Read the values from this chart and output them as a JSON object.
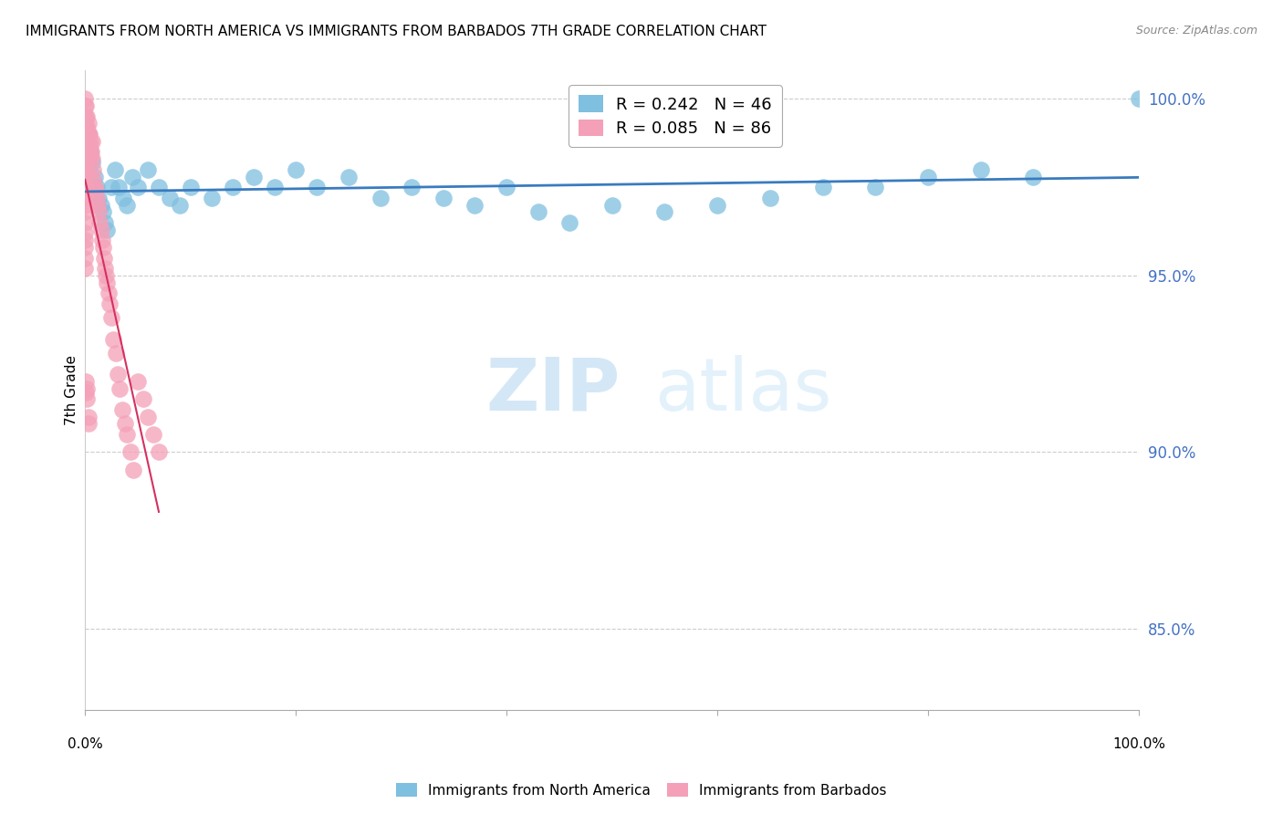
{
  "title": "IMMIGRANTS FROM NORTH AMERICA VS IMMIGRANTS FROM BARBADOS 7TH GRADE CORRELATION CHART",
  "source": "Source: ZipAtlas.com",
  "ylabel": "7th Grade",
  "ylabel_right_ticks": [
    "100.0%",
    "95.0%",
    "90.0%",
    "85.0%"
  ],
  "ylabel_right_vals": [
    1.0,
    0.95,
    0.9,
    0.85
  ],
  "legend_blue_label": "Immigrants from North America",
  "legend_pink_label": "Immigrants from Barbados",
  "legend_blue_r": "R = 0.242",
  "legend_blue_n": "N = 46",
  "legend_pink_r": "R = 0.085",
  "legend_pink_n": "N = 86",
  "blue_color": "#7fbfdf",
  "pink_color": "#f4a0b8",
  "blue_line_color": "#3a7bbf",
  "pink_line_color": "#d63060",
  "blue_scatter_x": [
    0.003,
    0.005,
    0.007,
    0.009,
    0.011,
    0.013,
    0.015,
    0.017,
    0.019,
    0.021,
    0.025,
    0.028,
    0.032,
    0.036,
    0.04,
    0.045,
    0.05,
    0.06,
    0.07,
    0.08,
    0.09,
    0.1,
    0.12,
    0.14,
    0.16,
    0.18,
    0.2,
    0.22,
    0.25,
    0.28,
    0.31,
    0.34,
    0.37,
    0.4,
    0.43,
    0.46,
    0.5,
    0.55,
    0.6,
    0.65,
    0.7,
    0.75,
    0.8,
    0.85,
    0.9,
    1.0
  ],
  "blue_scatter_y": [
    0.99,
    0.985,
    0.982,
    0.978,
    0.975,
    0.972,
    0.97,
    0.968,
    0.965,
    0.963,
    0.975,
    0.98,
    0.975,
    0.972,
    0.97,
    0.978,
    0.975,
    0.98,
    0.975,
    0.972,
    0.97,
    0.975,
    0.972,
    0.975,
    0.978,
    0.975,
    0.98,
    0.975,
    0.978,
    0.972,
    0.975,
    0.972,
    0.97,
    0.975,
    0.968,
    0.965,
    0.97,
    0.968,
    0.97,
    0.972,
    0.975,
    0.975,
    0.978,
    0.98,
    0.978,
    1.0
  ],
  "pink_scatter_x": [
    0.0,
    0.0,
    0.0,
    0.0,
    0.0,
    0.0,
    0.0,
    0.0,
    0.0,
    0.0,
    0.0,
    0.0,
    0.0,
    0.0,
    0.0,
    0.0,
    0.0,
    0.0,
    0.0,
    0.0,
    0.001,
    0.001,
    0.001,
    0.001,
    0.001,
    0.001,
    0.001,
    0.001,
    0.001,
    0.001,
    0.002,
    0.002,
    0.002,
    0.002,
    0.002,
    0.002,
    0.002,
    0.003,
    0.003,
    0.003,
    0.003,
    0.004,
    0.004,
    0.005,
    0.005,
    0.006,
    0.007,
    0.007,
    0.008,
    0.008,
    0.009,
    0.01,
    0.011,
    0.012,
    0.013,
    0.014,
    0.015,
    0.016,
    0.017,
    0.018,
    0.019,
    0.02,
    0.021,
    0.022,
    0.023,
    0.025,
    0.027,
    0.029,
    0.031,
    0.033,
    0.035,
    0.038,
    0.04,
    0.043,
    0.046,
    0.05,
    0.055,
    0.06,
    0.065,
    0.07,
    0.001,
    0.001,
    0.002,
    0.002,
    0.003,
    0.003
  ],
  "pink_scatter_y": [
    1.0,
    0.998,
    0.995,
    0.992,
    0.99,
    0.988,
    0.985,
    0.982,
    0.98,
    0.978,
    0.975,
    0.972,
    0.97,
    0.968,
    0.965,
    0.962,
    0.96,
    0.958,
    0.955,
    0.952,
    0.998,
    0.995,
    0.992,
    0.99,
    0.988,
    0.985,
    0.982,
    0.979,
    0.976,
    0.973,
    0.995,
    0.992,
    0.99,
    0.988,
    0.985,
    0.982,
    0.979,
    0.993,
    0.99,
    0.987,
    0.984,
    0.99,
    0.987,
    0.988,
    0.984,
    0.985,
    0.988,
    0.983,
    0.98,
    0.977,
    0.975,
    0.974,
    0.972,
    0.97,
    0.968,
    0.965,
    0.963,
    0.96,
    0.958,
    0.955,
    0.952,
    0.95,
    0.948,
    0.945,
    0.942,
    0.938,
    0.932,
    0.928,
    0.922,
    0.918,
    0.912,
    0.908,
    0.905,
    0.9,
    0.895,
    0.92,
    0.915,
    0.91,
    0.905,
    0.9,
    0.92,
    0.917,
    0.918,
    0.915,
    0.91,
    0.908
  ],
  "xlim": [
    0.0,
    1.0
  ],
  "ylim": [
    0.827,
    1.008
  ],
  "watermark_zip": "ZIP",
  "watermark_atlas": "atlas",
  "title_fontsize": 11,
  "source_fontsize": 9
}
